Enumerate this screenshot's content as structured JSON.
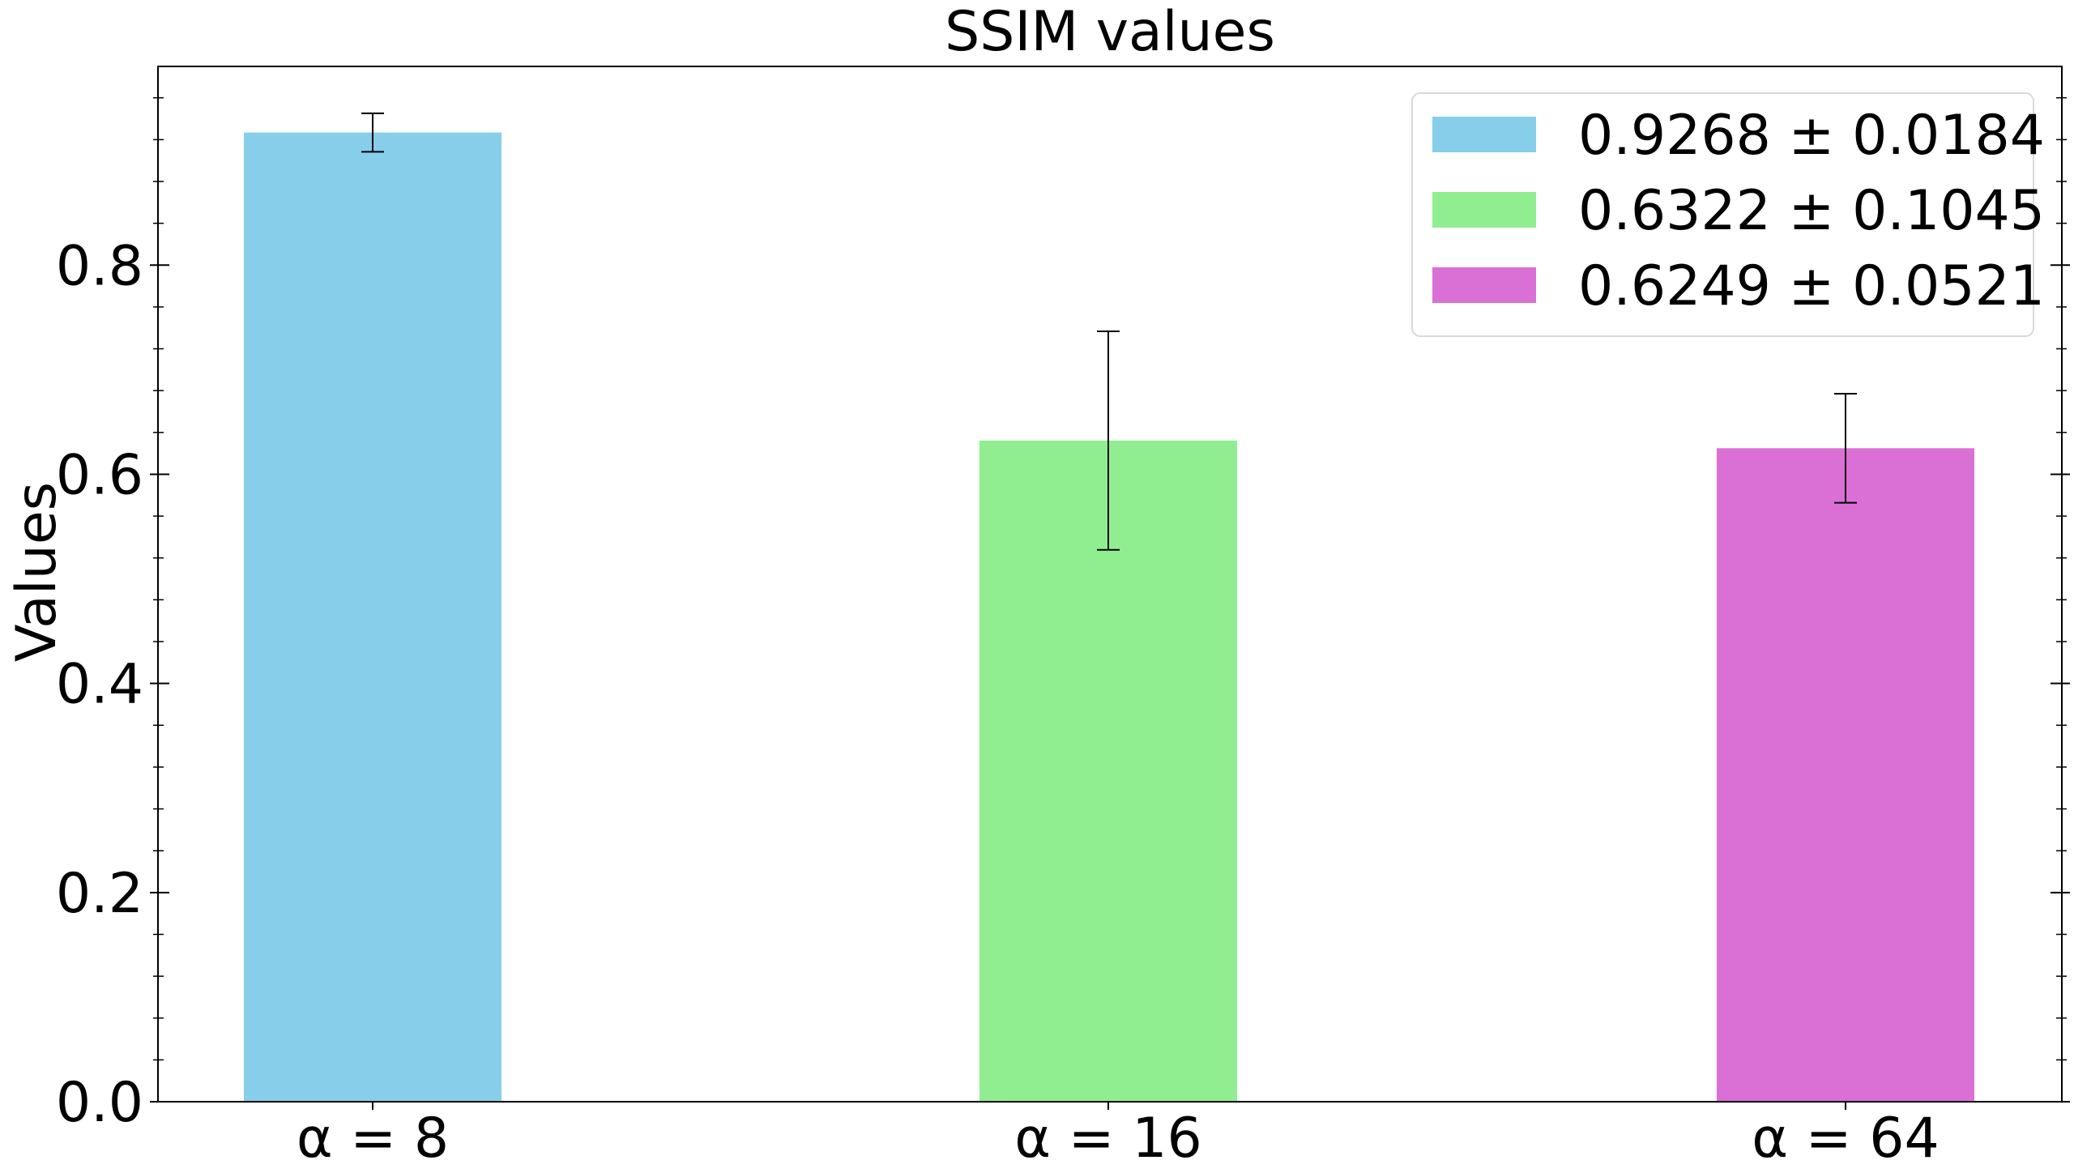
{
  "chart_data": {
    "type": "bar",
    "title": "SSIM values",
    "xlabel": "",
    "ylabel": "Values",
    "categories": [
      "α = 8",
      "α = 16",
      "α = 64"
    ],
    "values": [
      0.9268,
      0.6322,
      0.6249
    ],
    "errors": [
      0.0184,
      0.1045,
      0.0521
    ],
    "colors": [
      "#87ceeb",
      "#90ee90",
      "#da70d6"
    ],
    "legend": {
      "placement": "top-right",
      "entries": [
        "0.9268 ± 0.0184",
        "0.6322 ± 0.1045",
        "0.6249 ± 0.0521"
      ]
    },
    "ylim": [
      0,
      0.99
    ],
    "yticks": [
      0.0,
      0.2,
      0.4,
      0.6,
      0.8
    ],
    "ytick_labels": [
      "0.0",
      "0.2",
      "0.4",
      "0.6",
      "0.8"
    ],
    "grid": false
  }
}
